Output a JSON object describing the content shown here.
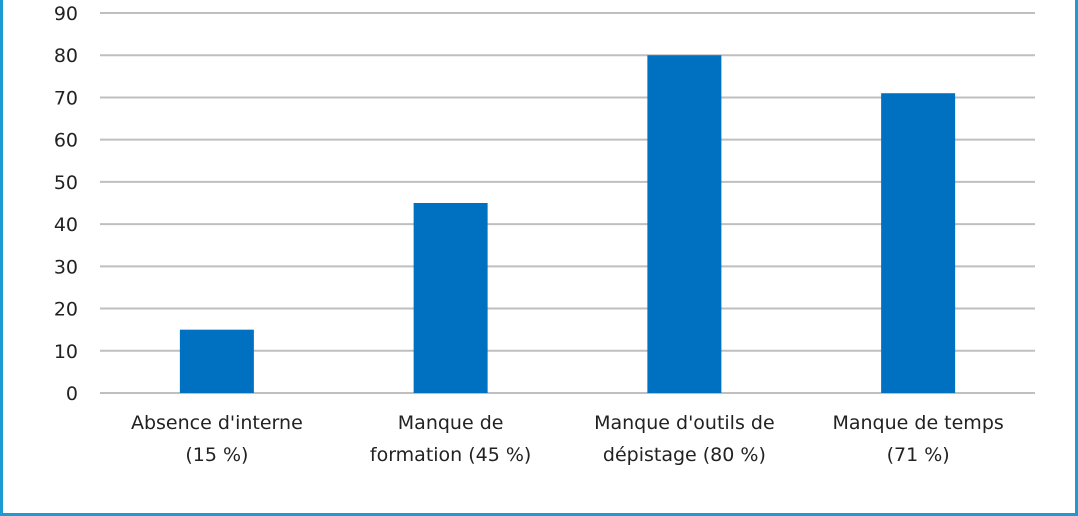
{
  "chart_data": {
    "type": "bar",
    "categories": [
      [
        "Absence d'interne",
        "(15 %)"
      ],
      [
        "Manque de",
        "formation (45 %)"
      ],
      [
        "Manque d'outils de",
        "dépistage (80 %)"
      ],
      [
        "Manque de temps",
        "(71 %)"
      ]
    ],
    "values": [
      15,
      45,
      80,
      71
    ],
    "ylim": [
      0,
      90
    ],
    "yticks": [
      "0",
      "10",
      "20",
      "30",
      "40",
      "50",
      "60",
      "70",
      "80",
      "90"
    ],
    "grid": true,
    "colors": {
      "bar": "#0070c0",
      "grid": "#bfbfbf",
      "axis": "#bfbfbf",
      "frame": "#1c9ad6"
    }
  }
}
